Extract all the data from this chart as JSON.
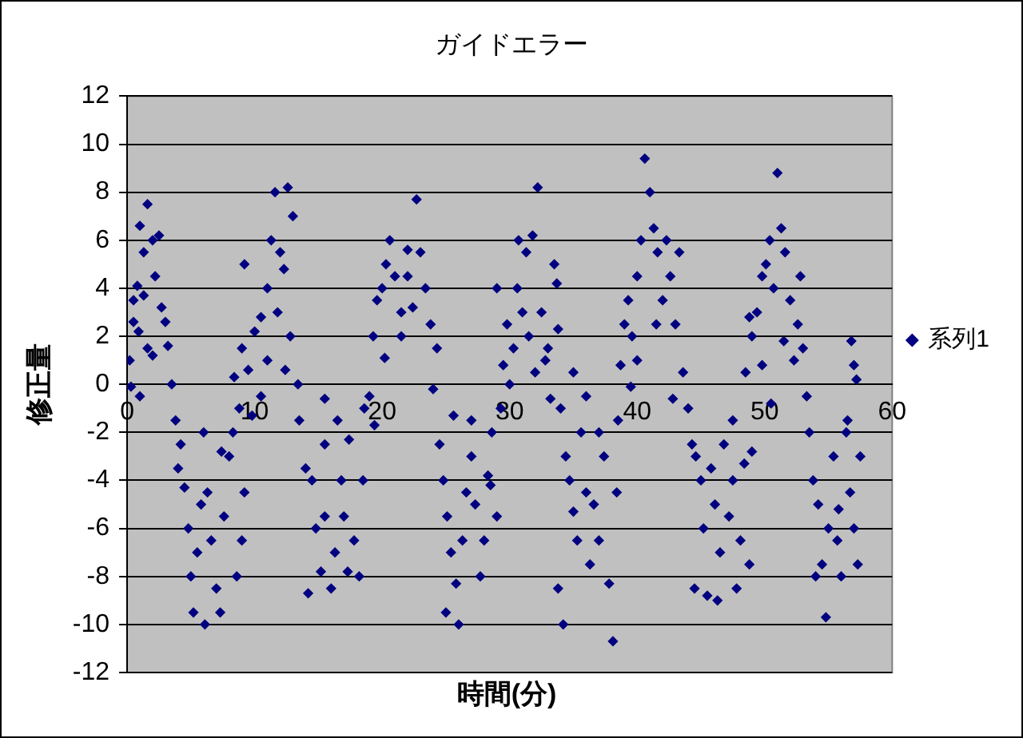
{
  "chart_data": {
    "type": "scatter",
    "title": "ガイドエラー",
    "xlabel": "時間(分)",
    "ylabel": "修正量",
    "xlim": [
      0,
      60
    ],
    "xticks": [
      0,
      10,
      20,
      30,
      40,
      50,
      60
    ],
    "ylim": [
      -12,
      12
    ],
    "yticks": [
      -12,
      -10,
      -8,
      -6,
      -4,
      -2,
      0,
      2,
      4,
      6,
      8,
      10,
      12
    ],
    "grid": "y",
    "legend": "right",
    "marker": "diamond",
    "series": [
      {
        "name": "系列1",
        "color": "#000080",
        "x": [
          0.3,
          0.5,
          0.8,
          1,
          1.3,
          1.6,
          2,
          2.2,
          2.5,
          2.7,
          0.9,
          1.3,
          1.6,
          3,
          3.2,
          3.5,
          0.2,
          1,
          2,
          0.5,
          3.8,
          4,
          4.5,
          4.8,
          5,
          5.2,
          5.5,
          5.8,
          6.1,
          6.3,
          6.6,
          7,
          7.3,
          7.6,
          8,
          8.3,
          8.6,
          9,
          9.2,
          4.2,
          6,
          7.4,
          8.8,
          8.4,
          9,
          9.5,
          10,
          10.5,
          11,
          11.3,
          11.6,
          12,
          12.3,
          12.6,
          13,
          12.8,
          11.8,
          9.2,
          10.5,
          9.8,
          11,
          12.4,
          13.4,
          13.5,
          14,
          14.5,
          14.8,
          15.2,
          15.5,
          16,
          16.3,
          16.8,
          17,
          17.4,
          17.8,
          18.2,
          18.5,
          14.2,
          15.5,
          16.5,
          18.6,
          17.3,
          15.5,
          19,
          19.3,
          19.6,
          20,
          20.3,
          20.6,
          21,
          21.5,
          22,
          22.4,
          22.7,
          23,
          23.4,
          23.8,
          24,
          24.3,
          20.2,
          21.5,
          19.4,
          22,
          24.5,
          24.8,
          25.1,
          25.4,
          25.8,
          26,
          26.3,
          26.6,
          27,
          27.3,
          27.7,
          28,
          28.3,
          28.6,
          29,
          25.6,
          27,
          29.3,
          25,
          28.5,
          29.5,
          29.8,
          30,
          30.3,
          30.6,
          31,
          31.3,
          31.5,
          31.8,
          32.2,
          32.5,
          32.8,
          33.2,
          33.5,
          33.8,
          29,
          30.7,
          32,
          33,
          33.7,
          34,
          34.4,
          34.7,
          35,
          35.3,
          35.6,
          36,
          36.3,
          36.6,
          37,
          37.4,
          37.8,
          38.1,
          38.4,
          34.2,
          33.8,
          36,
          37,
          35,
          38.5,
          38.7,
          39,
          39.3,
          39.6,
          40,
          40.3,
          40.6,
          41,
          41.3,
          41.6,
          42,
          42.3,
          42.6,
          43,
          43.3,
          43.6,
          40,
          41.5,
          42.8,
          39.5,
          44,
          44.3,
          44.6,
          45,
          45.2,
          45.5,
          45.8,
          46.1,
          46.5,
          46.8,
          47.2,
          47.5,
          47.8,
          48.1,
          48.4,
          48.8,
          46.3,
          47.5,
          49,
          44.5,
          48.5,
          49,
          49.4,
          49.8,
          50.1,
          50.4,
          50.7,
          51,
          51.3,
          51.6,
          52,
          52.3,
          52.6,
          53,
          53.3,
          49.8,
          50.5,
          51.5,
          52.8,
          48.8,
          53.5,
          53.8,
          54.2,
          54.5,
          54.8,
          55,
          55.4,
          55.7,
          56,
          56.4,
          56.7,
          57,
          57.3,
          57.5,
          56.5,
          56.8,
          57,
          57.2,
          55.8,
          54
        ],
        "values": [
          -0.1,
          2.6,
          4.1,
          6.6,
          5.5,
          7.5,
          6,
          4.5,
          6.2,
          3.2,
          2.2,
          3.7,
          1.5,
          2.6,
          1.6,
          0,
          1,
          -0.5,
          1.2,
          3.5,
          -1.5,
          -3.5,
          -4.3,
          -6,
          -8,
          -9.5,
          -7,
          -5,
          -10,
          -4.5,
          -6.5,
          -8.5,
          -9.5,
          -5.5,
          -3,
          -2,
          -8,
          -6.5,
          -4.5,
          -2.5,
          -2,
          -2.8,
          -1,
          0.3,
          1.5,
          0.6,
          2.2,
          2.8,
          4,
          6,
          8,
          5.5,
          4.8,
          8.2,
          7,
          2,
          3,
          5,
          -0.5,
          -1.3,
          1,
          0.6,
          0,
          -1.5,
          -3.5,
          -4,
          -6,
          -7.8,
          -5.5,
          -8.5,
          -7,
          -4,
          -5.5,
          -2.3,
          -6.5,
          -8,
          -4,
          -8.7,
          -2.5,
          -1.5,
          -1,
          -7.8,
          -0.6,
          -0.5,
          2,
          3.5,
          4,
          5,
          6,
          4.5,
          3,
          4.5,
          3.2,
          7.7,
          5.5,
          4,
          2.5,
          -0.2,
          1.5,
          1.1,
          2,
          -1.7,
          5.6,
          -2.5,
          -4,
          -5.5,
          -7,
          -8.3,
          -10,
          -6.5,
          -4.5,
          -3,
          -5,
          -8,
          -6.5,
          -3.8,
          -2,
          -5.5,
          -1.3,
          -1.5,
          -1,
          -9.5,
          -4.2,
          0.8,
          2.5,
          0,
          1.5,
          4,
          3,
          5.5,
          2,
          6.2,
          8.2,
          3,
          1,
          -0.6,
          5,
          2.3,
          4,
          6,
          0.5,
          1.5,
          4.2,
          -1,
          -3,
          -4,
          -5.3,
          -6.5,
          -2,
          -4.5,
          -7.5,
          -5,
          -6.5,
          -3,
          -8.3,
          -10.7,
          -4.5,
          -10,
          -8.5,
          -0.5,
          -2,
          0.5,
          -1.5,
          0.8,
          2.5,
          3.5,
          2,
          4.5,
          6,
          9.4,
          8,
          6.5,
          5.5,
          3.5,
          6,
          4.5,
          2.5,
          5.5,
          0.5,
          1,
          2.5,
          -0.6,
          -0.1,
          -1,
          -2.5,
          -3,
          -4,
          -6,
          -8.8,
          -3.5,
          -5,
          -7,
          -2.5,
          -5.5,
          -4,
          -8.5,
          -6.5,
          -3.3,
          -7.5,
          -9,
          -1.5,
          -2.8,
          -8.5,
          0.5,
          2,
          3,
          4.5,
          5,
          6,
          4,
          8.8,
          6.5,
          5.5,
          3.5,
          1,
          2.5,
          1.5,
          -0.5,
          0.8,
          -0.8,
          1.8,
          4.5,
          2.8,
          -2,
          -4,
          -5,
          -7.5,
          -9.7,
          -6,
          -3,
          -6.5,
          -8,
          -2,
          -4.5,
          -6,
          -7.5,
          -3,
          -1.5,
          1.8,
          0.8,
          0.2,
          -5.2,
          -8
        ]
      }
    ]
  }
}
